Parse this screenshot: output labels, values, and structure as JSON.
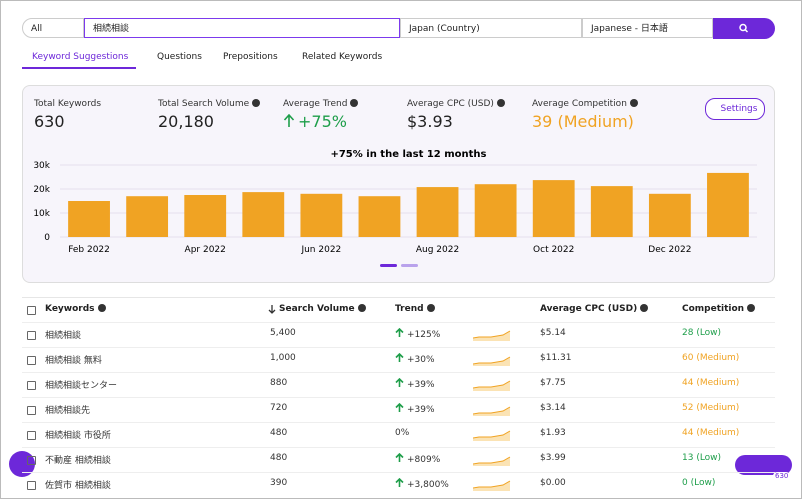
{
  "search": {
    "filter": "All",
    "query": "相続相談",
    "country": "Japan (Country)",
    "language": "Japanese - 日本語"
  },
  "tabs": [
    "Keyword Suggestions",
    "Questions",
    "Prepositions",
    "Related Keywords"
  ],
  "stats": [
    {
      "label": "Total Keywords",
      "value": "630"
    },
    {
      "label": "Total Search Volume",
      "value": "20,180"
    },
    {
      "label": "Average Trend",
      "value": "+75%"
    },
    {
      "label": "Average CPC (USD)",
      "value": "$3.93"
    },
    {
      "label": "Average Competition",
      "value": "39 (Medium)"
    }
  ],
  "settings": "Settings",
  "chart_data": {
    "type": "bar",
    "title": "+75% in the last 12 months",
    "color": "#f0a323",
    "categories": [
      "Feb 2022",
      null,
      "Apr 2022",
      null,
      "Jun 2022",
      null,
      "Aug 2022",
      null,
      "Oct 2022",
      null,
      "Dec 2022",
      null
    ],
    "values": [
      15000,
      17000,
      17500,
      18700,
      18000,
      17000,
      20800,
      22000,
      23700,
      21200,
      18000,
      26700
    ],
    "ylim": [
      0,
      30000
    ],
    "yticks": [
      0,
      {
        "value": 10000,
        "label": "10k"
      },
      {
        "value": 20000,
        "label": "20k"
      },
      {
        "value": 30000,
        "label": "30k"
      }
    ],
    "grid": true
  },
  "table": {
    "headers": [
      "Keywords",
      "Search Volume",
      "Trend",
      "Average CPC (USD)",
      "Competition"
    ],
    "rows": [
      [
        "相続相談",
        "5,400",
        "+125%",
        "$5.14",
        "28 (Low)"
      ],
      [
        "相続相談 無料",
        "1,000",
        "+30%",
        "$11.31",
        "60 (Medium)"
      ],
      [
        "相続相談センター",
        "880",
        "+39%",
        "$7.75",
        "44 (Medium)"
      ],
      [
        "相続相談先",
        "720",
        "+39%",
        "$3.14",
        "52 (Medium)"
      ],
      [
        "相続相談 市役所",
        "480",
        "0%",
        "$1.93",
        "44 (Medium)"
      ],
      [
        "不動産 相続相談",
        "480",
        "+809%",
        "$3.99",
        "13 (Low)"
      ],
      [
        "佐賀市 相続相談",
        "390",
        "+3,800%",
        "$0.00",
        "0 (Low)"
      ]
    ]
  },
  "cart_badge": "630"
}
